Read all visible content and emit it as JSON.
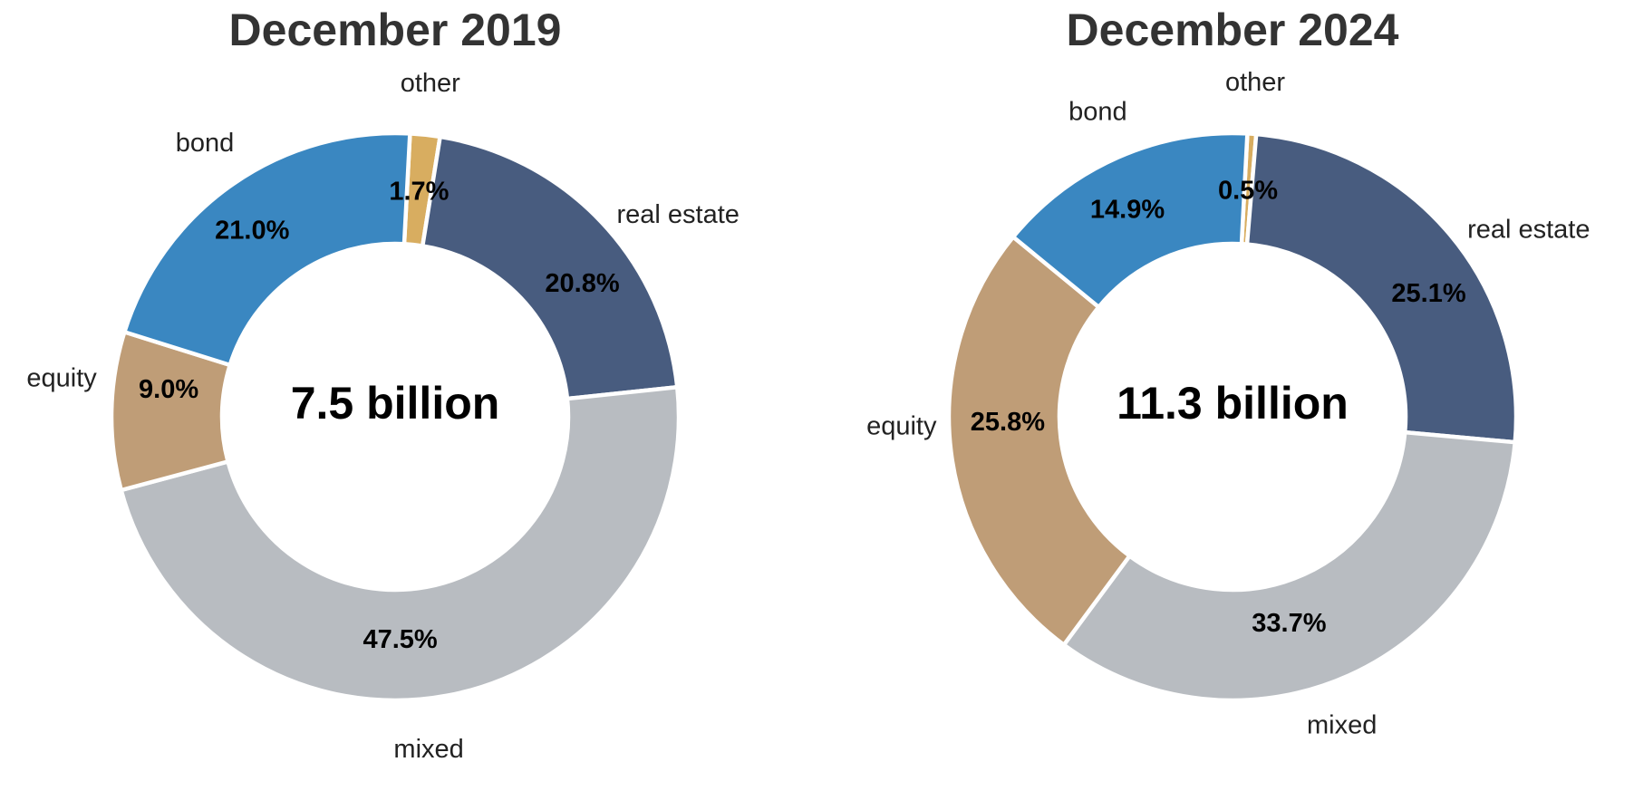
{
  "page": {
    "background_color": "#ffffff"
  },
  "style": {
    "title_color": "#333333",
    "category_label_color": "#222222",
    "percent_label_color": "#000000",
    "center_label_color": "#000000",
    "separator_color": "#ffffff"
  },
  "chart_data": [
    {
      "type": "pie",
      "subtype": "donut",
      "title": "December 2019",
      "center_label": "7.5 billion",
      "categories": [
        "other",
        "real estate",
        "mixed",
        "equity",
        "bond"
      ],
      "values": [
        1.7,
        20.8,
        47.5,
        9.0,
        21.0
      ],
      "value_labels": [
        "1.7%",
        "20.8%",
        "47.5%",
        "9.0%",
        "21.0%"
      ],
      "colors": [
        "#d8ad60",
        "#485c7f",
        "#b8bcc1",
        "#bf9d77",
        "#3a87c1"
      ],
      "direction": "clockwise",
      "start": "top",
      "legend": "none",
      "donut_hole_ratio": 0.61
    },
    {
      "type": "pie",
      "subtype": "donut",
      "title": "December 2024",
      "center_label": "11.3 billion",
      "categories": [
        "other",
        "real estate",
        "mixed",
        "equity",
        "bond"
      ],
      "values": [
        0.5,
        25.1,
        33.7,
        25.8,
        14.9
      ],
      "value_labels": [
        "0.5%",
        "25.1%",
        "33.7%",
        "25.8%",
        "14.9%"
      ],
      "colors": [
        "#d8ad60",
        "#485c7f",
        "#b8bcc1",
        "#bf9d77",
        "#3a87c1"
      ],
      "direction": "clockwise",
      "start": "top",
      "legend": "none",
      "donut_hole_ratio": 0.61
    }
  ]
}
